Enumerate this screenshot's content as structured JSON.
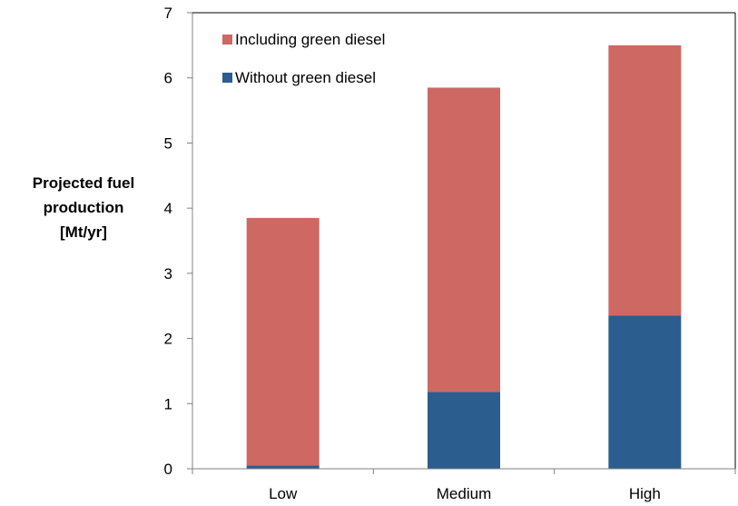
{
  "chart_data": {
    "type": "bar",
    "stacked": true,
    "title": "",
    "xlabel": "",
    "ylabel_lines": [
      "Projected fuel",
      "production",
      "[Mt/yr]"
    ],
    "categories": [
      "Low",
      "Medium",
      "High"
    ],
    "ylim": [
      0,
      7
    ],
    "yticks": [
      "0",
      "1",
      "2",
      "3",
      "4",
      "5",
      "6",
      "7"
    ],
    "grid": false,
    "legend_position": "top-left",
    "series": [
      {
        "name": "Without green diesel",
        "color": "#2b5d8f",
        "values": [
          0.05,
          1.18,
          2.35
        ]
      },
      {
        "name": "Including green diesel",
        "color": "#cd6862",
        "values": [
          3.8,
          4.67,
          4.15
        ]
      }
    ],
    "legend_order": [
      "Including green diesel",
      "Without green diesel"
    ]
  }
}
